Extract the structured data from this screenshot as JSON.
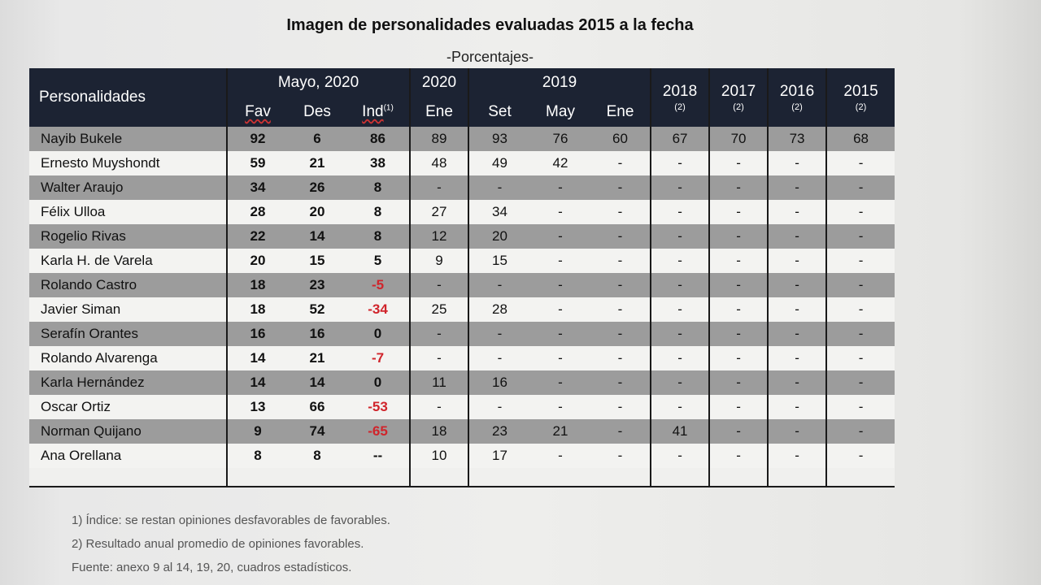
{
  "title": "Imagen de personalidades evaluadas 2015 a la fecha",
  "subtitle": "-Porcentajes-",
  "header": {
    "personalidades": "Personalidades",
    "mayo2020": "Mayo, 2020",
    "fav": "Fav",
    "des": "Des",
    "ind": "Ind",
    "ind_sup": "(1)",
    "y2020": "2020",
    "ene2020": "Ene",
    "y2019": "2019",
    "set": "Set",
    "may": "May",
    "ene2019": "Ene",
    "y2018": "2018",
    "y2017": "2017",
    "y2016": "2016",
    "y2015": "2015",
    "note2": "(2)"
  },
  "rows": [
    {
      "name": "Nayib Bukele",
      "fav": "92",
      "des": "6",
      "ind": "86",
      "ene20": "89",
      "set": "93",
      "may": "76",
      "ene19": "60",
      "y18": "67",
      "y17": "70",
      "y16": "73",
      "y15": "68"
    },
    {
      "name": "Ernesto Muyshondt",
      "fav": "59",
      "des": "21",
      "ind": "38",
      "ene20": "48",
      "set": "49",
      "may": "42",
      "ene19": "-",
      "y18": "-",
      "y17": "-",
      "y16": "-",
      "y15": "-"
    },
    {
      "name": "Walter Araujo",
      "fav": "34",
      "des": "26",
      "ind": "8",
      "ene20": "-",
      "set": "-",
      "may": "-",
      "ene19": "-",
      "y18": "-",
      "y17": "-",
      "y16": "-",
      "y15": "-"
    },
    {
      "name": "Félix Ulloa",
      "fav": "28",
      "des": "20",
      "ind": "8",
      "ene20": "27",
      "set": "34",
      "may": "-",
      "ene19": "-",
      "y18": "-",
      "y17": "-",
      "y16": "-",
      "y15": "-"
    },
    {
      "name": "Rogelio Rivas",
      "fav": "22",
      "des": "14",
      "ind": "8",
      "ene20": "12",
      "set": "20",
      "may": "-",
      "ene19": "-",
      "y18": "-",
      "y17": "-",
      "y16": "-",
      "y15": "-"
    },
    {
      "name": "Karla H. de Varela",
      "fav": "20",
      "des": "15",
      "ind": "5",
      "ene20": "9",
      "set": "15",
      "may": "-",
      "ene19": "-",
      "y18": "-",
      "y17": "-",
      "y16": "-",
      "y15": "-"
    },
    {
      "name": "Rolando Castro",
      "fav": "18",
      "des": "23",
      "ind": "-5",
      "ene20": "-",
      "set": "-",
      "may": "-",
      "ene19": "-",
      "y18": "-",
      "y17": "-",
      "y16": "-",
      "y15": "-"
    },
    {
      "name": "Javier Siman",
      "fav": "18",
      "des": "52",
      "ind": "-34",
      "ene20": "25",
      "set": "28",
      "may": "-",
      "ene19": "-",
      "y18": "-",
      "y17": "-",
      "y16": "-",
      "y15": "-"
    },
    {
      "name": "Serafín Orantes",
      "fav": "16",
      "des": "16",
      "ind": "0",
      "ene20": "-",
      "set": "-",
      "may": "-",
      "ene19": "-",
      "y18": "-",
      "y17": "-",
      "y16": "-",
      "y15": "-"
    },
    {
      "name": "Rolando Alvarenga",
      "fav": "14",
      "des": "21",
      "ind": "-7",
      "ene20": "-",
      "set": "-",
      "may": "-",
      "ene19": "-",
      "y18": "-",
      "y17": "-",
      "y16": "-",
      "y15": "-"
    },
    {
      "name": "Karla Hernández",
      "fav": "14",
      "des": "14",
      "ind": "0",
      "ene20": "11",
      "set": "16",
      "may": "-",
      "ene19": "-",
      "y18": "-",
      "y17": "-",
      "y16": "-",
      "y15": "-"
    },
    {
      "name": "Oscar Ortiz",
      "fav": "13",
      "des": "66",
      "ind": "-53",
      "ene20": "-",
      "set": "-",
      "may": "-",
      "ene19": "-",
      "y18": "-",
      "y17": "-",
      "y16": "-",
      "y15": "-"
    },
    {
      "name": "Norman Quijano",
      "fav": "9",
      "des": "74",
      "ind": "-65",
      "ene20": "18",
      "set": "23",
      "may": "21",
      "ene19": "-",
      "y18": "41",
      "y17": "-",
      "y16": "-",
      "y15": "-"
    },
    {
      "name": "Ana Orellana",
      "fav": "8",
      "des": "8",
      "ind": "--",
      "ene20": "10",
      "set": "17",
      "may": "-",
      "ene19": "-",
      "y18": "-",
      "y17": "-",
      "y16": "-",
      "y15": "-"
    }
  ],
  "notes": {
    "n1": "1) Índice: se restan opiniones desfavorables de favorables.",
    "n2": "2) Resultado anual promedio de opiniones favorables.",
    "source": "Fuente: anexo 9 al 14, 19, 20, cuadros estadísticos."
  },
  "colors": {
    "header_bg": "#1c2333",
    "dark_row": "#9c9c9c",
    "negative": "#d0242b"
  }
}
